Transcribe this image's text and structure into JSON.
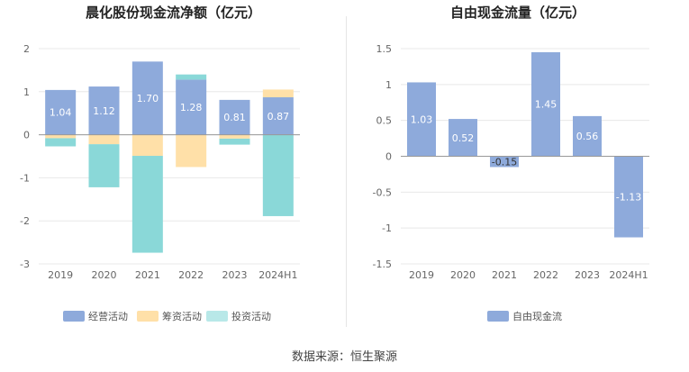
{
  "source_text": "数据来源：恒生聚源",
  "colors": {
    "operating": "#8eaadb",
    "financing": "#ffe0a8",
    "investing": "#8ad8d8",
    "investing_legend": "#b8e8e8",
    "fcf": "#8eaadb"
  },
  "chart_data": [
    {
      "type": "bar",
      "title": "晨化股份现金流净额（亿元）",
      "categories": [
        "2019",
        "2020",
        "2021",
        "2022",
        "2023",
        "2024H1"
      ],
      "ylim": [
        -3,
        2
      ],
      "yticks": [
        "2",
        "1",
        "0",
        "-1",
        "-2",
        "-3"
      ],
      "stacked": true,
      "series": [
        {
          "name": "经营活动",
          "values": [
            1.04,
            1.12,
            1.7,
            1.28,
            0.81,
            0.87
          ],
          "labels": [
            "1.04",
            "1.12",
            "1.70",
            "1.28",
            "0.81",
            "0.87"
          ]
        },
        {
          "name": "筹资活动",
          "values": [
            -0.08,
            -0.22,
            -0.49,
            -0.75,
            -0.09,
            0.18
          ]
        },
        {
          "name": "投资活动",
          "values": [
            -0.19,
            -1.0,
            -2.25,
            0.12,
            -0.14,
            -1.89
          ]
        }
      ],
      "legend_position": "bottom"
    },
    {
      "type": "bar",
      "title": "自由现金流量（亿元）",
      "categories": [
        "2019",
        "2020",
        "2021",
        "2022",
        "2023",
        "2024H1"
      ],
      "ylim": [
        -1.5,
        1.5
      ],
      "yticks": [
        "1.5",
        "1",
        "0.5",
        "0",
        "-0.5",
        "-1",
        "-1.5"
      ],
      "series": [
        {
          "name": "自由现金流",
          "values": [
            1.03,
            0.52,
            -0.15,
            1.45,
            0.56,
            -1.13
          ],
          "labels": [
            "1.03",
            "0.52",
            "-0.15",
            "1.45",
            "0.56",
            "-1.13"
          ]
        }
      ],
      "legend_position": "bottom"
    }
  ]
}
